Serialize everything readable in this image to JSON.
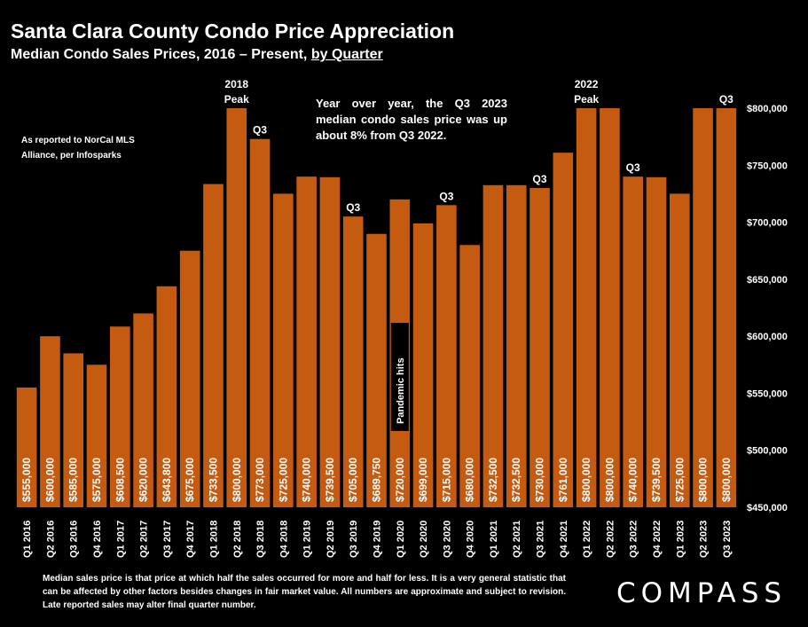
{
  "title": "Santa Clara County Condo Price Appreciation",
  "subtitle_main": "Median Condo Sales Prices, 2016 – Present,",
  "subtitle_underlined": "by Quarter",
  "source_note": "As reported to NorCal MLS Alliance, per Infosparks",
  "callout": "Year over year, the Q3 2023 median condo sales price was up about 8% from Q3 2022.",
  "footnote": "Median sales price is that price at which half the sales occurred for more and half for less. It is a very general statistic that can be affected by other factors besides changes in fair market value. All numbers are approximate and subject to revision. Late reported sales may alter final quarter number.",
  "logo": "COMPASS",
  "colors": {
    "background": "#000000",
    "bar": "#C55A11",
    "text": "#FFFFFF"
  },
  "chart_data": {
    "type": "bar",
    "categories": [
      "Q1 2016",
      "Q2 2016",
      "Q3 2016",
      "Q4 2016",
      "Q1 2017",
      "Q2 2017",
      "Q3 2017",
      "Q4 2017",
      "Q1 2018",
      "Q2 2018",
      "Q3 2018",
      "Q4 2018",
      "Q1 2019",
      "Q2 2019",
      "Q3 2019",
      "Q4 2019",
      "Q1 2020",
      "Q2 2020",
      "Q3 2020",
      "Q4 2020",
      "Q1 2021",
      "Q2 2021",
      "Q3 2021",
      "Q4 2021",
      "Q1 2022",
      "Q2 2022",
      "Q3 2022",
      "Q4 2022",
      "Q1 2023",
      "Q2 2023",
      "Q3 2023"
    ],
    "values": [
      555000,
      600000,
      585000,
      575000,
      608500,
      620000,
      643800,
      675000,
      733500,
      800000,
      773000,
      725000,
      740000,
      739500,
      705000,
      689750,
      720000,
      699000,
      715000,
      680000,
      732500,
      732500,
      730000,
      761000,
      800000,
      800000,
      740000,
      739500,
      725000,
      800000,
      800000
    ],
    "value_labels": [
      "$555,000",
      "$600,000",
      "$585,000",
      "$575,000",
      "$608,500",
      "$620,000",
      "$643,800",
      "$675,000",
      "$733,500",
      "$800,000",
      "$773,000",
      "$725,000",
      "$740,000",
      "$739,500",
      "$705,000",
      "$689,750",
      "$720,000",
      "$699,000",
      "$715,000",
      "$680,000",
      "$732,500",
      "$732,500",
      "$730,000",
      "$761,000",
      "$800,000",
      "$800,000",
      "$740,000",
      "$739,500",
      "$725,000",
      "$800,000",
      "$800,000"
    ],
    "ylim": [
      450000,
      800000
    ],
    "yticks": [
      450000,
      500000,
      550000,
      600000,
      650000,
      700000,
      750000,
      800000
    ],
    "ytick_labels": [
      "$450,000",
      "$500,000",
      "$550,000",
      "$600,000",
      "$650,000",
      "$700,000",
      "$750,000",
      "$800,000"
    ],
    "y_axis_side": "right",
    "grid": false,
    "annotations": [
      {
        "index": 9,
        "lines": [
          "2018",
          "Peak"
        ]
      },
      {
        "index": 10,
        "lines": [
          "Q3"
        ]
      },
      {
        "index": 14,
        "lines": [
          "Q3"
        ]
      },
      {
        "index": 18,
        "lines": [
          "Q3"
        ]
      },
      {
        "index": 22,
        "lines": [
          "Q3"
        ]
      },
      {
        "index": 24,
        "lines": [
          "2022",
          "Peak"
        ]
      },
      {
        "index": 26,
        "lines": [
          "Q3"
        ]
      },
      {
        "index": 30,
        "lines": [
          "Q3"
        ]
      }
    ],
    "pandemic_note": {
      "index": 16,
      "text": "Pandemic hits"
    }
  }
}
